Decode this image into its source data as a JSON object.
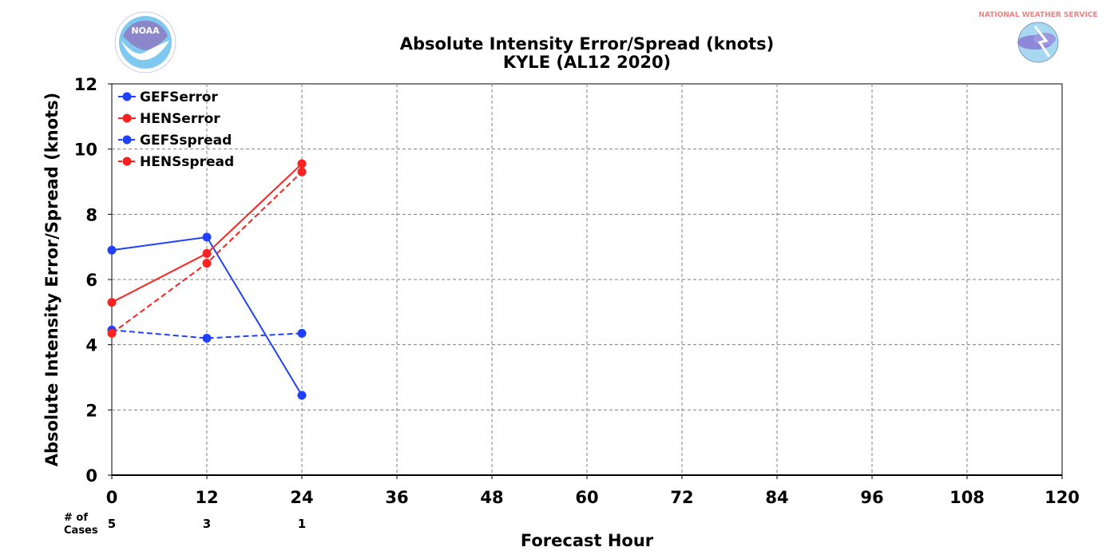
{
  "chart_data": {
    "type": "line",
    "title": "Absolute Intensity Error/Spread (knots)",
    "subtitle": "KYLE (AL12 2020)",
    "xlabel": "Forecast Hour",
    "ylabel": "Absolute Intensity Error/Spread (knots)",
    "xlim": [
      0,
      120
    ],
    "ylim": [
      0,
      12
    ],
    "xticks": [
      "0",
      "12",
      "24",
      "36",
      "48",
      "60",
      "72",
      "84",
      "96",
      "108",
      "120"
    ],
    "yticks": [
      "0",
      "2",
      "4",
      "6",
      "8",
      "10",
      "12"
    ],
    "grid": true,
    "legend_position": "top-left",
    "cases_label": "# of\nCases",
    "cases": [
      {
        "x": 0,
        "count": "5"
      },
      {
        "x": 12,
        "count": "3"
      },
      {
        "x": 24,
        "count": "1"
      }
    ],
    "series": [
      {
        "name": "GEFSerror",
        "color": "#2040ff",
        "dashed": false,
        "points": [
          {
            "x": 0,
            "y": 6.9
          },
          {
            "x": 12,
            "y": 7.3
          },
          {
            "x": 24,
            "y": 2.45
          }
        ]
      },
      {
        "name": "HENSerror",
        "color": "#ff2020",
        "dashed": false,
        "points": [
          {
            "x": 0,
            "y": 5.3
          },
          {
            "x": 12,
            "y": 6.8
          },
          {
            "x": 24,
            "y": 9.55
          }
        ]
      },
      {
        "name": "GEFSspread",
        "color": "#2040ff",
        "dashed": true,
        "points": [
          {
            "x": 0,
            "y": 4.45
          },
          {
            "x": 12,
            "y": 4.2
          },
          {
            "x": 24,
            "y": 4.35
          }
        ]
      },
      {
        "name": "HENSspread",
        "color": "#ff2020",
        "dashed": true,
        "points": [
          {
            "x": 0,
            "y": 4.35
          },
          {
            "x": 12,
            "y": 6.5
          },
          {
            "x": 24,
            "y": 9.3
          }
        ]
      }
    ]
  },
  "logos": {
    "left": {
      "text": "NOAA",
      "icon": "noaa-logo-icon"
    },
    "right": {
      "text": "NATIONAL WEATHER SERVICE",
      "icon": "nws-logo-icon"
    }
  }
}
